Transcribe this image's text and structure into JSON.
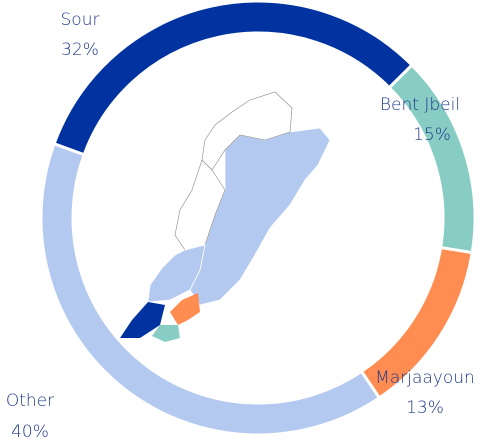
{
  "chart_data": {
    "type": "pie",
    "categories": [
      "Sour",
      "Bent Jbeil",
      "Marjaayoun",
      "Other"
    ],
    "values": [
      32,
      15,
      13,
      40
    ],
    "value_labels": [
      "32%",
      "15%",
      "13%",
      "40%"
    ],
    "colors": [
      "#0033a0",
      "#88cdc4",
      "#ff8c50",
      "#b3c9ef"
    ]
  }
}
